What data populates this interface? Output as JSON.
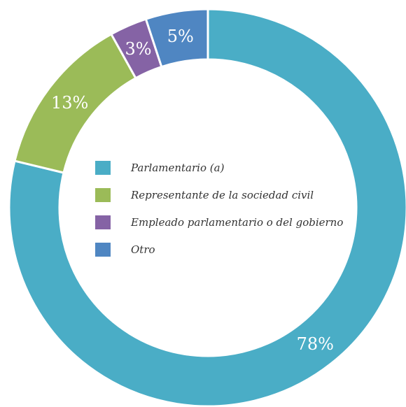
{
  "chart_data": {
    "type": "pie",
    "variant": "donut",
    "categories": [
      "Parlamentario (a)",
      "Representante de la sociedad civil",
      "Empleado parlamentario o del gobierno",
      "Otro"
    ],
    "values": [
      78,
      13,
      3,
      5
    ],
    "labels": [
      "78%",
      "13%",
      "3%",
      "5%"
    ],
    "colors": [
      "#4aadc6",
      "#9bbb58",
      "#8563a5",
      "#4f86c2"
    ],
    "legend_position": "center",
    "start_angle_deg": 0,
    "direction": "clockwise"
  }
}
